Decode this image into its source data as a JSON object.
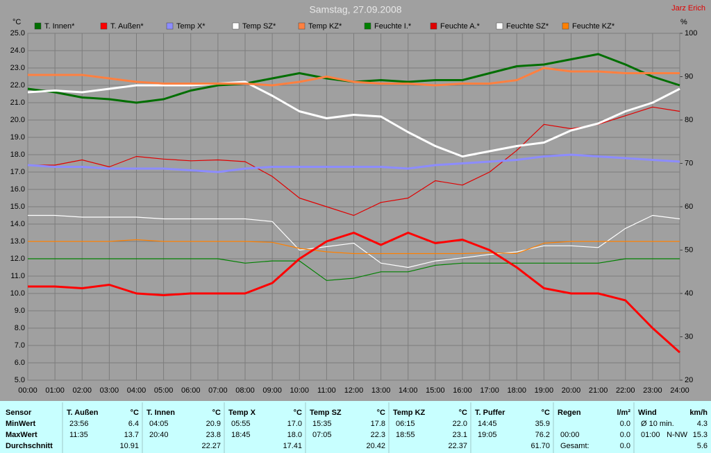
{
  "chart_data": {
    "type": "line",
    "title": "Samstag, 27.09.2008",
    "author": "Jarz Erich",
    "ylabel": "°C",
    "y2label": "%",
    "grid": true,
    "x": [
      0,
      1,
      2,
      3,
      4,
      5,
      6,
      7,
      8,
      9,
      10,
      11,
      12,
      13,
      14,
      15,
      16,
      17,
      18,
      19,
      20,
      21,
      22,
      23,
      24
    ],
    "xlim": [
      0,
      24
    ],
    "xticks": [
      {
        "value": 0,
        "label": "00:00"
      },
      {
        "value": 1,
        "label": "01:00"
      },
      {
        "value": 2,
        "label": "02:00"
      },
      {
        "value": 3,
        "label": "03:00"
      },
      {
        "value": 4,
        "label": "04:00"
      },
      {
        "value": 5,
        "label": "05:00"
      },
      {
        "value": 6,
        "label": "06:00"
      },
      {
        "value": 7,
        "label": "07:00"
      },
      {
        "value": 8,
        "label": "08:00"
      },
      {
        "value": 9,
        "label": "09:00"
      },
      {
        "value": 10,
        "label": "10:00"
      },
      {
        "value": 11,
        "label": "11:00"
      },
      {
        "value": 12,
        "label": "12:00"
      },
      {
        "value": 13,
        "label": "13:00"
      },
      {
        "value": 14,
        "label": "14:00"
      },
      {
        "value": 15,
        "label": "15:00"
      },
      {
        "value": 16,
        "label": "16:00"
      },
      {
        "value": 17,
        "label": "17:00"
      },
      {
        "value": 18,
        "label": "18:00"
      },
      {
        "value": 19,
        "label": "19:00"
      },
      {
        "value": 20,
        "label": "20:00"
      },
      {
        "value": 21,
        "label": "21:00"
      },
      {
        "value": 22,
        "label": "22:00"
      },
      {
        "value": 23,
        "label": "23:00"
      },
      {
        "value": 24,
        "label": "24:00"
      }
    ],
    "ylim": [
      5,
      25
    ],
    "yticks": [
      {
        "value": 5,
        "label": "5.0"
      },
      {
        "value": 6,
        "label": "6.0"
      },
      {
        "value": 7,
        "label": "7.0"
      },
      {
        "value": 8,
        "label": "8.0"
      },
      {
        "value": 9,
        "label": "9.0"
      },
      {
        "value": 10,
        "label": "10.0"
      },
      {
        "value": 11,
        "label": "11.0"
      },
      {
        "value": 12,
        "label": "12.0"
      },
      {
        "value": 13,
        "label": "13.0"
      },
      {
        "value": 14,
        "label": "14.0"
      },
      {
        "value": 15,
        "label": "15.0"
      },
      {
        "value": 16,
        "label": "16.0"
      },
      {
        "value": 17,
        "label": "17.0"
      },
      {
        "value": 18,
        "label": "18.0"
      },
      {
        "value": 19,
        "label": "19.0"
      },
      {
        "value": 20,
        "label": "20.0"
      },
      {
        "value": 21,
        "label": "21.0"
      },
      {
        "value": 22,
        "label": "22.0"
      },
      {
        "value": 23,
        "label": "23.0"
      },
      {
        "value": 24,
        "label": "24.0"
      },
      {
        "value": 25,
        "label": "25.0"
      }
    ],
    "y2lim": [
      20,
      100
    ],
    "y2ticks": [
      20,
      30,
      40,
      50,
      60,
      70,
      80,
      90,
      100
    ],
    "series": [
      {
        "name": "T. Innen*",
        "color": "#006e00",
        "values": [
          21.8,
          21.6,
          21.3,
          21.2,
          21.0,
          21.2,
          21.7,
          22.0,
          22.1,
          22.4,
          22.7,
          22.4,
          22.2,
          22.3,
          22.2,
          22.3,
          22.3,
          22.7,
          23.1,
          23.2,
          23.5,
          23.8,
          23.2,
          22.5,
          22.0
        ]
      },
      {
        "name": "T. Außen*",
        "color": "#ff0000",
        "values": [
          10.4,
          10.4,
          10.3,
          10.5,
          10.0,
          9.9,
          10.0,
          10.0,
          10.0,
          10.6,
          12.0,
          13.0,
          13.5,
          12.8,
          13.5,
          12.9,
          13.1,
          12.5,
          11.5,
          10.3,
          10.0,
          10.0,
          9.6,
          8.0,
          6.6
        ]
      },
      {
        "name": "Temp X*",
        "color": "#8c8cff",
        "values": [
          17.4,
          17.3,
          17.3,
          17.2,
          17.2,
          17.2,
          17.1,
          17.0,
          17.2,
          17.3,
          17.3,
          17.3,
          17.3,
          17.3,
          17.2,
          17.4,
          17.5,
          17.6,
          17.7,
          17.9,
          18.0,
          17.9,
          17.8,
          17.7,
          17.6
        ]
      },
      {
        "name": "Temp SZ*",
        "color": "#ffffff",
        "values": [
          21.6,
          21.7,
          21.6,
          21.8,
          22.0,
          22.0,
          22.0,
          22.1,
          22.2,
          21.4,
          20.5,
          20.1,
          20.3,
          20.2,
          19.3,
          18.5,
          17.9,
          18.2,
          18.5,
          18.7,
          19.4,
          19.8,
          20.5,
          21.0,
          21.8
        ]
      },
      {
        "name": "Temp KZ*",
        "color": "#ff8040",
        "values": [
          22.6,
          22.6,
          22.6,
          22.4,
          22.2,
          22.1,
          22.1,
          22.1,
          22.1,
          22.0,
          22.2,
          22.5,
          22.2,
          22.1,
          22.1,
          22.0,
          22.1,
          22.1,
          22.3,
          23.0,
          22.8,
          22.8,
          22.7,
          22.7,
          22.7
        ]
      },
      {
        "name": "Feuchte I.*",
        "color": "#008000",
        "axis": "y2",
        "values": [
          48,
          48,
          48,
          48,
          48,
          48,
          48,
          48,
          47,
          47.5,
          47.5,
          43,
          43.5,
          45,
          45,
          46.5,
          47,
          47,
          47,
          47,
          47,
          47,
          48,
          48,
          48
        ]
      },
      {
        "name": "Feuchte A.*",
        "color": "#e00000",
        "axis": "y2",
        "values": [
          69.6,
          69.6,
          70.8,
          69.2,
          71.6,
          71,
          70.6,
          70.8,
          70.4,
          67,
          62,
          60,
          58,
          61,
          62,
          66,
          65,
          68,
          73,
          79,
          78,
          79,
          81,
          83,
          82
        ]
      },
      {
        "name": "Feuchte SZ*",
        "color": "#ffffff",
        "axis": "y2",
        "values": [
          58,
          58,
          57.6,
          57.6,
          57.6,
          57.2,
          57.2,
          57.2,
          57.2,
          56.6,
          50,
          50.8,
          51.6,
          47,
          46,
          47.5,
          48.2,
          49,
          49.6,
          51,
          51,
          50.6,
          55,
          58,
          57.2
        ]
      },
      {
        "name": "Feuchte KZ*",
        "color": "#ff8000",
        "axis": "y2",
        "values": [
          52,
          52,
          52,
          52,
          52.4,
          52,
          52,
          52,
          52,
          51.8,
          50.4,
          49.6,
          49.2,
          49.2,
          49.2,
          49.2,
          49.2,
          49.4,
          49.2,
          51.6,
          52,
          52,
          52,
          52,
          52
        ]
      }
    ]
  },
  "table": {
    "header_label": "Sensor",
    "row_labels": [
      "MinWert",
      "MaxWert",
      "Durchschnitt"
    ],
    "columns": [
      {
        "name": "T. Außen",
        "unit": "°C",
        "cells": [
          [
            "23:56",
            "6.4"
          ],
          [
            "11:35",
            "13.7"
          ],
          [
            "10.91"
          ]
        ]
      },
      {
        "name": "T. Innen",
        "unit": "°C",
        "cells": [
          [
            "04:05",
            "20.9"
          ],
          [
            "20:40",
            "23.8"
          ],
          [
            "22.27"
          ]
        ]
      },
      {
        "name": "Temp X",
        "unit": "°C",
        "cells": [
          [
            "05:55",
            "17.0"
          ],
          [
            "18:45",
            "18.0"
          ],
          [
            "17.41"
          ]
        ]
      },
      {
        "name": "Temp SZ",
        "unit": "°C",
        "cells": [
          [
            "15:35",
            "17.8"
          ],
          [
            "07:05",
            "22.3"
          ],
          [
            "20.42"
          ]
        ]
      },
      {
        "name": "Temp KZ",
        "unit": "°C",
        "cells": [
          [
            "06:15",
            "22.0"
          ],
          [
            "18:55",
            "23.1"
          ],
          [
            "22.37"
          ]
        ]
      },
      {
        "name": "T. Puffer",
        "unit": "°C",
        "cells": [
          [
            "14:45",
            "35.9"
          ],
          [
            "19:05",
            "76.2"
          ],
          [
            "61.70"
          ]
        ]
      },
      {
        "name": "Regen",
        "unit": "l/m²",
        "cells": [
          [
            "0.0"
          ],
          [
            "00:00",
            "0.0"
          ],
          [
            "Gesamt:",
            "0.0"
          ]
        ]
      },
      {
        "name": "Wind",
        "unit": "km/h",
        "cells": [
          [
            "Ø 10 min.",
            "4.3"
          ],
          [
            "01:00",
            "N-NW",
            "15.3"
          ],
          [
            "5.6"
          ]
        ]
      }
    ]
  }
}
